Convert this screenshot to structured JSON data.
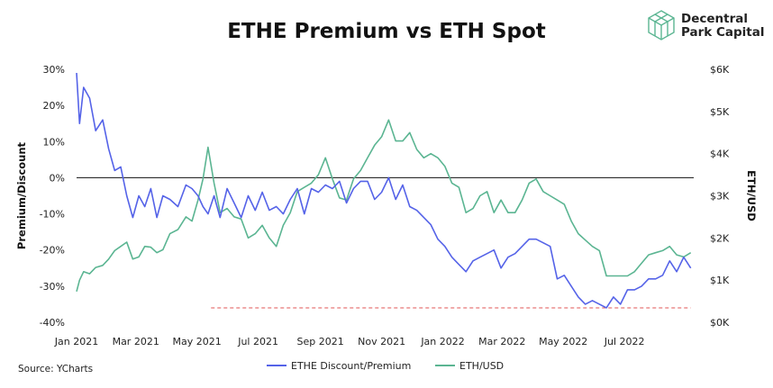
{
  "title": "ETHE Premium vs ETH Spot",
  "brand": {
    "line1": "Decentral",
    "line2": "Park Capital",
    "logo_icon": "cube-logo-icon"
  },
  "source": "Source: YCharts",
  "colors": {
    "premium": "#5563e8",
    "eth": "#5bb592",
    "zero": "#111111",
    "reference": "#e05555",
    "brand": "#5bb592"
  },
  "chart_data": {
    "type": "line",
    "title": "ETHE Premium vs ETH Spot",
    "xlabel": "",
    "y_left_label": "Premium/Discount",
    "y_right_label": "ETH/USD",
    "y_left_ticks": [
      "30%",
      "20%",
      "10%",
      "0%",
      "-10%",
      "-20%",
      "-30%",
      "-40%"
    ],
    "y_left_values": [
      30,
      20,
      10,
      0,
      -10,
      -20,
      -30,
      -40
    ],
    "y_left_lim": [
      -40,
      30
    ],
    "y_right_ticks": [
      "$6K",
      "$5K",
      "$4K",
      "$3K",
      "$2K",
      "$1K",
      "$0K"
    ],
    "y_right_values": [
      6000,
      5000,
      4000,
      3000,
      2000,
      1000,
      0
    ],
    "y_right_lim": [
      0,
      6000
    ],
    "x_ticks": [
      "Jan 2021",
      "Mar 2021",
      "May 2021",
      "Jul 2021",
      "Sep 2021",
      "Nov 2021",
      "Jan 2022",
      "Mar 2022",
      "May 2022",
      "Jul 2022"
    ],
    "x_tick_dates": [
      "2021-01-01",
      "2021-03-01",
      "2021-05-01",
      "2021-07-01",
      "2021-09-01",
      "2021-11-01",
      "2022-01-01",
      "2022-03-01",
      "2022-05-01",
      "2022-07-01"
    ],
    "x_lim": [
      "2021-01-01",
      "2022-09-08"
    ],
    "zero_line": 0,
    "reference_line": {
      "y": -36,
      "from": "2021-05-15",
      "to": "2022-09-05",
      "style": "dashed"
    },
    "legend": {
      "placement": "bottom"
    },
    "series": [
      {
        "name": "ETHE Discount/Premium",
        "axis": "left",
        "color": "#5563e8",
        "x": [
          "2021-01-01",
          "2021-01-04",
          "2021-01-08",
          "2021-01-14",
          "2021-01-20",
          "2021-01-27",
          "2021-02-02",
          "2021-02-08",
          "2021-02-14",
          "2021-02-20",
          "2021-02-26",
          "2021-03-04",
          "2021-03-10",
          "2021-03-16",
          "2021-03-22",
          "2021-03-28",
          "2021-04-04",
          "2021-04-12",
          "2021-04-20",
          "2021-04-26",
          "2021-05-02",
          "2021-05-07",
          "2021-05-12",
          "2021-05-18",
          "2021-05-24",
          "2021-05-31",
          "2021-06-07",
          "2021-06-14",
          "2021-06-21",
          "2021-06-28",
          "2021-07-05",
          "2021-07-12",
          "2021-07-19",
          "2021-07-26",
          "2021-08-02",
          "2021-08-09",
          "2021-08-16",
          "2021-08-23",
          "2021-08-30",
          "2021-09-06",
          "2021-09-13",
          "2021-09-20",
          "2021-09-27",
          "2021-10-04",
          "2021-10-11",
          "2021-10-18",
          "2021-10-25",
          "2021-11-01",
          "2021-11-08",
          "2021-11-15",
          "2021-11-22",
          "2021-11-29",
          "2021-12-06",
          "2021-12-13",
          "2021-12-20",
          "2021-12-27",
          "2022-01-03",
          "2022-01-10",
          "2022-01-17",
          "2022-01-24",
          "2022-01-31",
          "2022-02-07",
          "2022-02-14",
          "2022-02-21",
          "2022-02-28",
          "2022-03-07",
          "2022-03-14",
          "2022-03-21",
          "2022-03-28",
          "2022-04-04",
          "2022-04-11",
          "2022-04-18",
          "2022-04-25",
          "2022-05-02",
          "2022-05-09",
          "2022-05-16",
          "2022-05-23",
          "2022-05-30",
          "2022-06-06",
          "2022-06-13",
          "2022-06-20",
          "2022-06-27",
          "2022-07-04",
          "2022-07-11",
          "2022-07-18",
          "2022-07-25",
          "2022-08-01",
          "2022-08-08",
          "2022-08-15",
          "2022-08-22",
          "2022-08-29",
          "2022-09-05"
        ],
        "values": [
          29,
          15,
          25,
          22,
          13,
          16,
          8,
          2,
          3,
          -5,
          -11,
          -5,
          -8,
          -3,
          -11,
          -5,
          -6,
          -8,
          -2,
          -3,
          -5,
          -8,
          -10,
          -5,
          -11,
          -3,
          -7,
          -11,
          -5,
          -9,
          -4,
          -9,
          -8,
          -10,
          -6,
          -3,
          -10,
          -3,
          -4,
          -2,
          -3,
          -1,
          -7,
          -3,
          -1,
          -1,
          -6,
          -4,
          0,
          -6,
          -2,
          -8,
          -9,
          -11,
          -13,
          -17,
          -19,
          -22,
          -24,
          -26,
          -23,
          -22,
          -21,
          -20,
          -25,
          -22,
          -21,
          -19,
          -17,
          -17,
          -18,
          -19,
          -28,
          -27,
          -30,
          -33,
          -35,
          -34,
          -35,
          -36,
          -33,
          -35,
          -31,
          -31,
          -30,
          -28,
          -28,
          -27,
          -23,
          -26,
          -22,
          -25
        ]
      },
      {
        "name": "ETH/USD",
        "axis": "right",
        "color": "#5bb592",
        "x": [
          "2021-01-01",
          "2021-01-04",
          "2021-01-08",
          "2021-01-14",
          "2021-01-20",
          "2021-01-27",
          "2021-02-02",
          "2021-02-08",
          "2021-02-14",
          "2021-02-20",
          "2021-02-26",
          "2021-03-04",
          "2021-03-10",
          "2021-03-16",
          "2021-03-22",
          "2021-03-28",
          "2021-04-04",
          "2021-04-12",
          "2021-04-20",
          "2021-04-26",
          "2021-05-02",
          "2021-05-07",
          "2021-05-12",
          "2021-05-18",
          "2021-05-24",
          "2021-05-31",
          "2021-06-07",
          "2021-06-14",
          "2021-06-21",
          "2021-06-28",
          "2021-07-05",
          "2021-07-12",
          "2021-07-19",
          "2021-07-26",
          "2021-08-02",
          "2021-08-09",
          "2021-08-16",
          "2021-08-23",
          "2021-08-30",
          "2021-09-06",
          "2021-09-13",
          "2021-09-20",
          "2021-09-27",
          "2021-10-04",
          "2021-10-11",
          "2021-10-18",
          "2021-10-25",
          "2021-11-01",
          "2021-11-08",
          "2021-11-15",
          "2021-11-22",
          "2021-11-29",
          "2021-12-06",
          "2021-12-13",
          "2021-12-20",
          "2021-12-27",
          "2022-01-03",
          "2022-01-10",
          "2022-01-17",
          "2022-01-24",
          "2022-01-31",
          "2022-02-07",
          "2022-02-14",
          "2022-02-21",
          "2022-02-28",
          "2022-03-07",
          "2022-03-14",
          "2022-03-21",
          "2022-03-28",
          "2022-04-04",
          "2022-04-11",
          "2022-04-18",
          "2022-04-25",
          "2022-05-02",
          "2022-05-09",
          "2022-05-16",
          "2022-05-23",
          "2022-05-30",
          "2022-06-06",
          "2022-06-13",
          "2022-06-20",
          "2022-06-27",
          "2022-07-04",
          "2022-07-11",
          "2022-07-18",
          "2022-07-25",
          "2022-08-01",
          "2022-08-08",
          "2022-08-15",
          "2022-08-22",
          "2022-08-29",
          "2022-09-05"
        ],
        "values": [
          730,
          1000,
          1200,
          1150,
          1300,
          1350,
          1500,
          1700,
          1800,
          1900,
          1500,
          1550,
          1800,
          1780,
          1650,
          1720,
          2100,
          2200,
          2500,
          2400,
          2900,
          3400,
          4150,
          3300,
          2600,
          2700,
          2500,
          2450,
          2000,
          2100,
          2300,
          2000,
          1800,
          2300,
          2600,
          3100,
          3200,
          3300,
          3500,
          3900,
          3400,
          2950,
          2900,
          3400,
          3600,
          3900,
          4200,
          4400,
          4800,
          4300,
          4300,
          4500,
          4100,
          3900,
          4000,
          3900,
          3700,
          3300,
          3200,
          2600,
          2700,
          3000,
          3100,
          2600,
          2900,
          2600,
          2600,
          2900,
          3300,
          3400,
          3100,
          3000,
          2900,
          2800,
          2400,
          2100,
          1950,
          1800,
          1700,
          1100,
          1100,
          1100,
          1100,
          1200,
          1400,
          1600,
          1650,
          1700,
          1800,
          1600,
          1550,
          1650
        ]
      }
    ]
  }
}
